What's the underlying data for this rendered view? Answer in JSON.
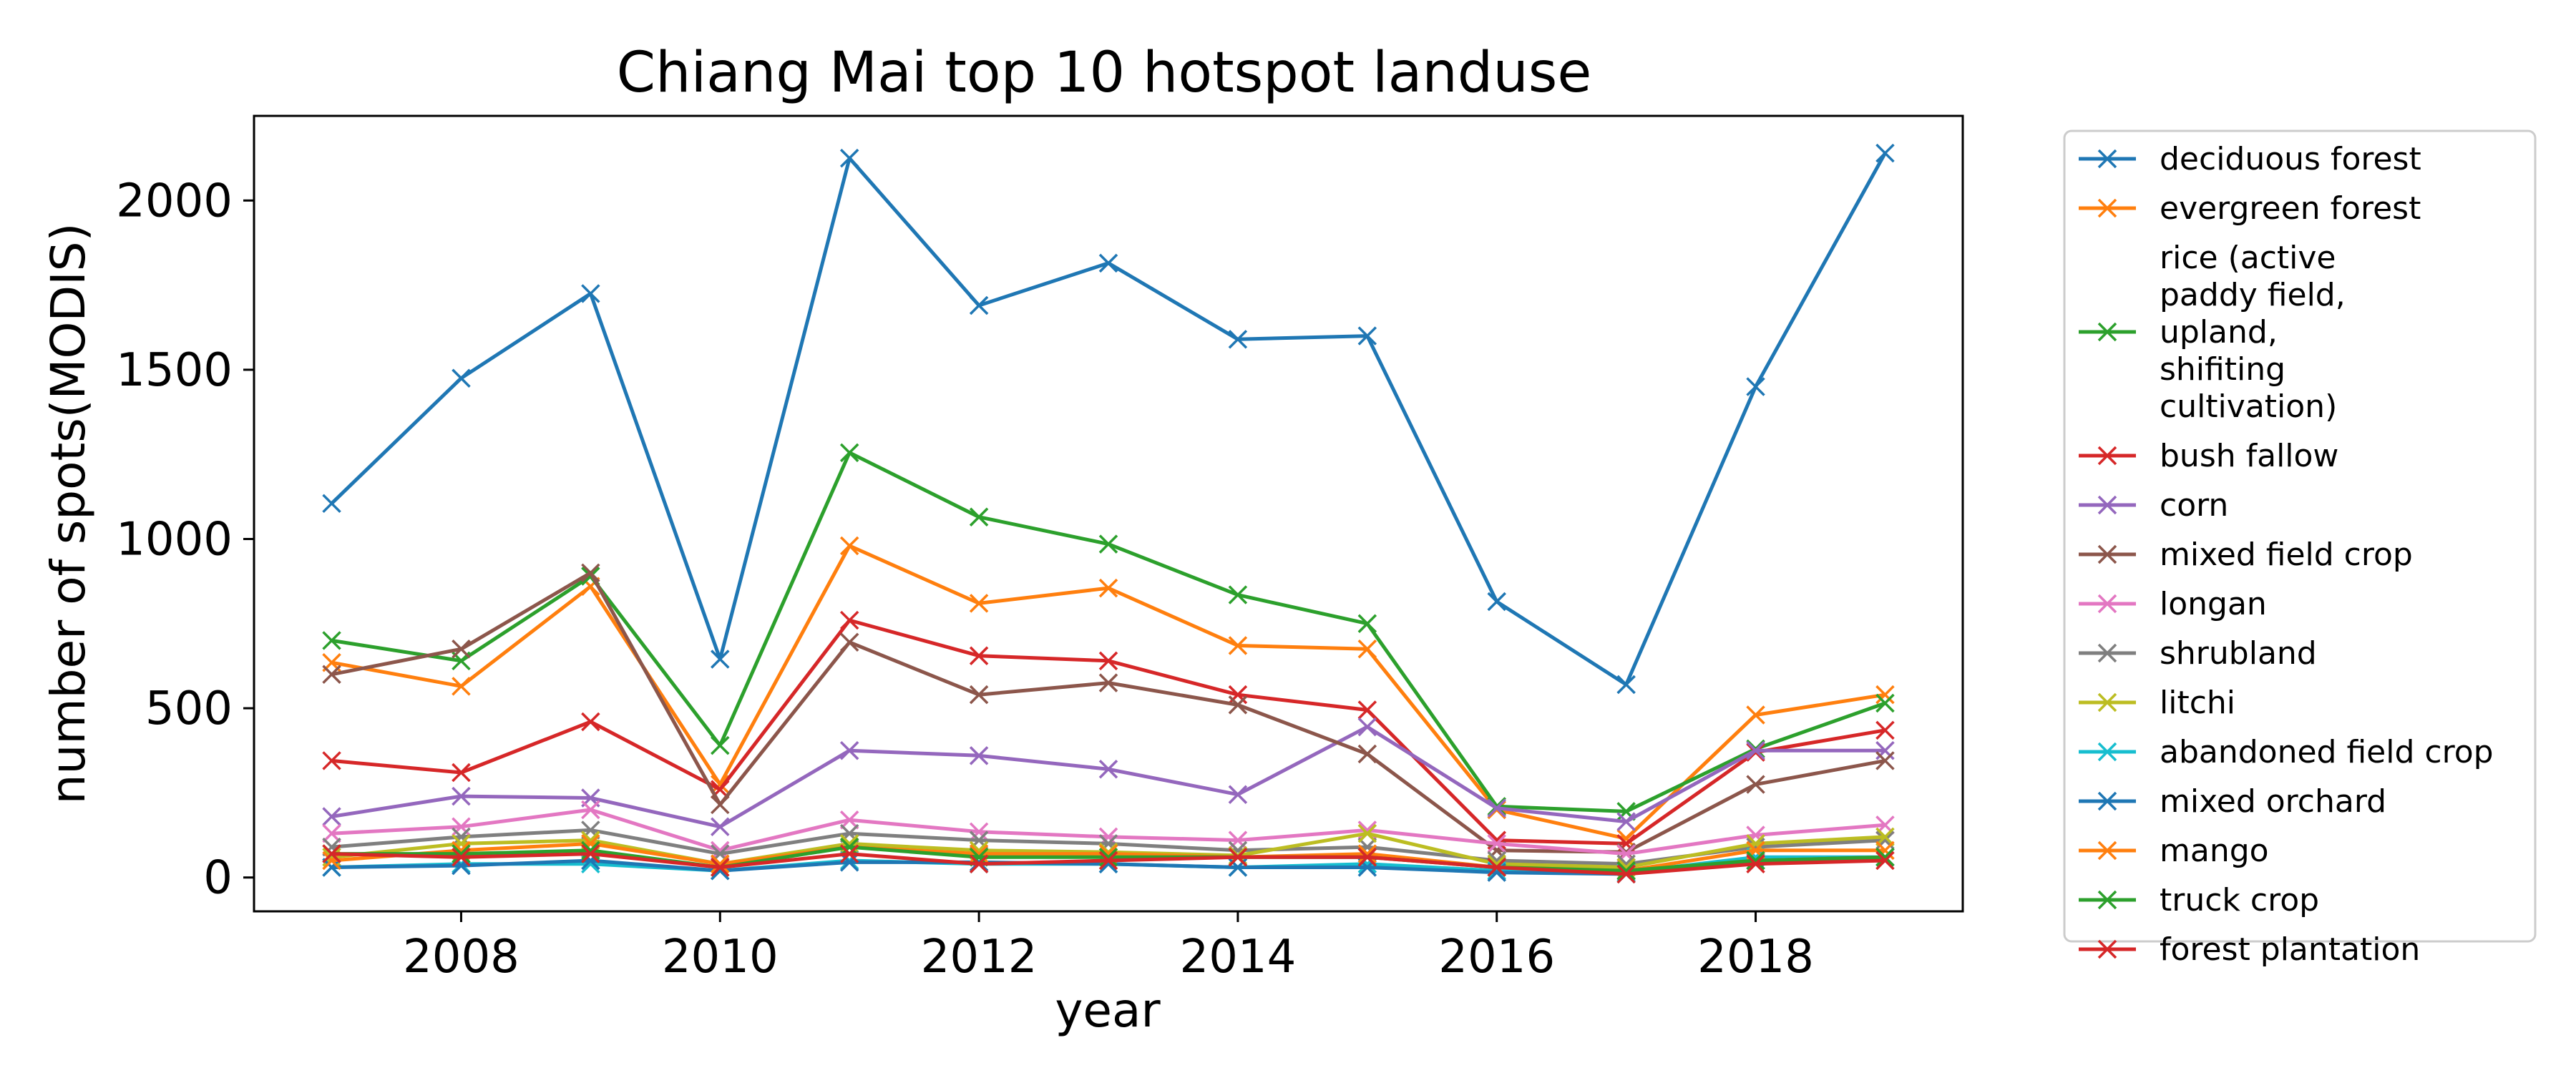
{
  "chart_data": {
    "type": "line",
    "title": "Chiang Mai top 10 hotspot landuse",
    "xlabel": "year",
    "ylabel": "number of spots(MODIS)",
    "xlim": [
      2006.4,
      2019.6
    ],
    "ylim": [
      -100,
      2250
    ],
    "xticks": [
      2008,
      2010,
      2012,
      2014,
      2016,
      2018
    ],
    "yticks": [
      0,
      500,
      1000,
      1500,
      2000
    ],
    "grid": false,
    "legend_position": "outside-right",
    "marker": "x",
    "x": [
      2007,
      2008,
      2009,
      2010,
      2011,
      2012,
      2013,
      2014,
      2015,
      2016,
      2017,
      2018,
      2019
    ],
    "series": [
      {
        "name": "deciduous forest",
        "color": "#1f77b4",
        "values": [
          1105,
          1475,
          1725,
          645,
          2125,
          1690,
          1815,
          1590,
          1600,
          815,
          570,
          1450,
          2140
        ]
      },
      {
        "name": "evergreen forest",
        "color": "#ff7f0e",
        "values": [
          635,
          565,
          860,
          275,
          980,
          810,
          855,
          685,
          675,
          200,
          115,
          480,
          540
        ]
      },
      {
        "name": "rice (active paddy field, upland, shifiting cultivation)",
        "color": "#2ca02c",
        "values": [
          700,
          640,
          890,
          390,
          1255,
          1065,
          985,
          835,
          750,
          210,
          195,
          380,
          515
        ]
      },
      {
        "name": "bush fallow",
        "color": "#d62728",
        "values": [
          345,
          310,
          460,
          260,
          760,
          655,
          640,
          540,
          495,
          110,
          100,
          370,
          435
        ]
      },
      {
        "name": "corn",
        "color": "#9467bd",
        "values": [
          180,
          240,
          235,
          150,
          375,
          360,
          320,
          245,
          445,
          205,
          165,
          375,
          375
        ]
      },
      {
        "name": "mixed field crop",
        "color": "#8c564b",
        "values": [
          600,
          675,
          900,
          215,
          695,
          540,
          575,
          510,
          365,
          80,
          75,
          275,
          345
        ]
      },
      {
        "name": "longan",
        "color": "#e377c2",
        "values": [
          130,
          150,
          200,
          80,
          170,
          135,
          120,
          110,
          140,
          100,
          70,
          125,
          155
        ]
      },
      {
        "name": "shrubland",
        "color": "#7f7f7f",
        "values": [
          90,
          120,
          140,
          70,
          130,
          110,
          100,
          80,
          90,
          50,
          40,
          90,
          110
        ]
      },
      {
        "name": "litchi",
        "color": "#bcbd22",
        "values": [
          60,
          100,
          110,
          40,
          100,
          80,
          75,
          65,
          130,
          40,
          30,
          100,
          120
        ]
      },
      {
        "name": "abandoned field crop",
        "color": "#17becf",
        "values": [
          30,
          40,
          40,
          20,
          50,
          40,
          40,
          30,
          40,
          20,
          15,
          60,
          60
        ]
      },
      {
        "name": "mixed orchard",
        "color": "#1f77b4",
        "values": [
          30,
          35,
          50,
          20,
          45,
          45,
          40,
          30,
          30,
          15,
          10,
          50,
          60
        ]
      },
      {
        "name": "mango",
        "color": "#ff7f0e",
        "values": [
          50,
          80,
          100,
          40,
          90,
          70,
          70,
          60,
          70,
          30,
          20,
          80,
          80
        ]
      },
      {
        "name": "truck crop",
        "color": "#2ca02c",
        "values": [
          70,
          70,
          80,
          30,
          90,
          60,
          60,
          60,
          60,
          30,
          20,
          50,
          60
        ]
      },
      {
        "name": "forest plantation",
        "color": "#d62728",
        "values": [
          70,
          60,
          70,
          30,
          70,
          40,
          50,
          60,
          60,
          30,
          10,
          40,
          50
        ]
      }
    ]
  }
}
